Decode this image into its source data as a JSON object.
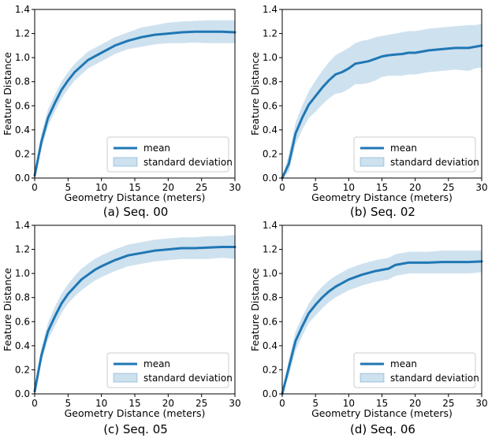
{
  "colors": {
    "mean": "#1f77b4",
    "band": "#1f77b4",
    "band_opacity": 0.22
  },
  "chart_data": [
    {
      "type": "line",
      "caption": "(a) Seq. 00",
      "xlabel": "Geometry Distance (meters)",
      "ylabel": "Feature Distance",
      "xlim": [
        0,
        30
      ],
      "ylim": [
        0,
        1.4
      ],
      "xticks": [
        0,
        5,
        10,
        15,
        20,
        25,
        30
      ],
      "yticks": [
        0.0,
        0.2,
        0.4,
        0.6,
        0.8,
        1.0,
        1.2,
        1.4
      ],
      "grid": false,
      "legend": {
        "placement": "lower-right",
        "entries": [
          "mean",
          "standard deviation"
        ]
      },
      "x": [
        0,
        1,
        2,
        3,
        4,
        5,
        6,
        7,
        8,
        9,
        10,
        12,
        14,
        16,
        18,
        20,
        22,
        24,
        26,
        28,
        30
      ],
      "mean": [
        0.02,
        0.3,
        0.5,
        0.62,
        0.73,
        0.81,
        0.88,
        0.93,
        0.98,
        1.01,
        1.04,
        1.1,
        1.14,
        1.17,
        1.19,
        1.2,
        1.21,
        1.215,
        1.215,
        1.215,
        1.21
      ],
      "upper": [
        0.05,
        0.37,
        0.57,
        0.69,
        0.8,
        0.88,
        0.95,
        1.0,
        1.05,
        1.08,
        1.11,
        1.17,
        1.21,
        1.25,
        1.27,
        1.29,
        1.3,
        1.305,
        1.31,
        1.31,
        1.31
      ],
      "lower": [
        0.0,
        0.24,
        0.43,
        0.55,
        0.66,
        0.74,
        0.81,
        0.86,
        0.91,
        0.94,
        0.97,
        1.03,
        1.07,
        1.09,
        1.11,
        1.12,
        1.12,
        1.125,
        1.12,
        1.12,
        1.12
      ]
    },
    {
      "type": "line",
      "caption": "(b) Seq. 02",
      "xlabel": "Geometry Distance (meters)",
      "ylabel": "Feature Distance",
      "xlim": [
        0,
        30
      ],
      "ylim": [
        0,
        1.4
      ],
      "xticks": [
        0,
        5,
        10,
        15,
        20,
        25,
        30
      ],
      "yticks": [
        0.0,
        0.2,
        0.4,
        0.6,
        0.8,
        1.0,
        1.2,
        1.4
      ],
      "grid": false,
      "legend": {
        "placement": "lower-right",
        "entries": [
          "mean",
          "standard deviation"
        ]
      },
      "x": [
        0,
        1,
        2,
        3,
        4,
        5,
        6,
        7,
        8,
        9,
        10,
        11,
        12,
        13,
        14,
        15,
        16,
        17,
        18,
        19,
        20,
        22,
        24,
        26,
        28,
        29,
        30
      ],
      "mean": [
        0.0,
        0.12,
        0.37,
        0.5,
        0.61,
        0.68,
        0.75,
        0.81,
        0.86,
        0.88,
        0.91,
        0.95,
        0.96,
        0.97,
        0.99,
        1.01,
        1.02,
        1.025,
        1.03,
        1.04,
        1.04,
        1.06,
        1.07,
        1.08,
        1.08,
        1.09,
        1.1
      ],
      "upper": [
        0.0,
        0.2,
        0.46,
        0.6,
        0.72,
        0.81,
        0.89,
        0.96,
        1.02,
        1.05,
        1.08,
        1.12,
        1.14,
        1.15,
        1.17,
        1.18,
        1.19,
        1.2,
        1.21,
        1.22,
        1.22,
        1.24,
        1.25,
        1.26,
        1.27,
        1.27,
        1.28
      ],
      "lower": [
        0.0,
        0.05,
        0.28,
        0.4,
        0.5,
        0.55,
        0.61,
        0.66,
        0.7,
        0.71,
        0.74,
        0.78,
        0.78,
        0.79,
        0.81,
        0.84,
        0.85,
        0.85,
        0.85,
        0.86,
        0.86,
        0.88,
        0.89,
        0.9,
        0.89,
        0.91,
        0.92
      ]
    },
    {
      "type": "line",
      "caption": "(c) Seq. 05",
      "xlabel": "Geometry Distance (meters)",
      "ylabel": "Feature Distance",
      "xlim": [
        0,
        30
      ],
      "ylim": [
        0,
        1.4
      ],
      "xticks": [
        0,
        5,
        10,
        15,
        20,
        25,
        30
      ],
      "yticks": [
        0.0,
        0.2,
        0.4,
        0.6,
        0.8,
        1.0,
        1.2,
        1.4
      ],
      "grid": false,
      "legend": {
        "placement": "lower-right",
        "entries": [
          "mean",
          "standard deviation"
        ]
      },
      "x": [
        0,
        1,
        2,
        3,
        4,
        5,
        6,
        7,
        8,
        9,
        10,
        12,
        14,
        16,
        18,
        20,
        22,
        24,
        26,
        28,
        30
      ],
      "mean": [
        0.02,
        0.32,
        0.52,
        0.64,
        0.75,
        0.83,
        0.89,
        0.95,
        0.99,
        1.03,
        1.06,
        1.11,
        1.15,
        1.17,
        1.19,
        1.2,
        1.21,
        1.21,
        1.215,
        1.22,
        1.22
      ],
      "upper": [
        0.05,
        0.38,
        0.59,
        0.72,
        0.83,
        0.91,
        0.98,
        1.04,
        1.08,
        1.12,
        1.15,
        1.2,
        1.24,
        1.26,
        1.28,
        1.29,
        1.3,
        1.3,
        1.31,
        1.31,
        1.32
      ],
      "lower": [
        0.0,
        0.26,
        0.45,
        0.56,
        0.67,
        0.75,
        0.81,
        0.86,
        0.9,
        0.94,
        0.97,
        1.02,
        1.06,
        1.08,
        1.1,
        1.11,
        1.12,
        1.12,
        1.12,
        1.13,
        1.12
      ]
    },
    {
      "type": "line",
      "caption": "(d) Seq. 06",
      "xlabel": "Geometry Distance (meters)",
      "ylabel": "Feature Distance",
      "xlim": [
        0,
        30
      ],
      "ylim": [
        0,
        1.4
      ],
      "xticks": [
        0,
        5,
        10,
        15,
        20,
        25,
        30
      ],
      "yticks": [
        0.0,
        0.2,
        0.4,
        0.6,
        0.8,
        1.0,
        1.2,
        1.4
      ],
      "grid": false,
      "legend": {
        "placement": "lower-right",
        "entries": [
          "mean",
          "standard deviation"
        ]
      },
      "x": [
        0,
        1,
        2,
        3,
        4,
        5,
        6,
        7,
        8,
        9,
        10,
        12,
        14,
        16,
        17,
        18,
        19,
        20,
        22,
        24,
        26,
        28,
        30
      ],
      "mean": [
        0.0,
        0.22,
        0.44,
        0.56,
        0.67,
        0.74,
        0.8,
        0.85,
        0.89,
        0.92,
        0.95,
        0.99,
        1.02,
        1.04,
        1.07,
        1.08,
        1.09,
        1.09,
        1.09,
        1.095,
        1.095,
        1.095,
        1.1
      ],
      "upper": [
        0.0,
        0.29,
        0.52,
        0.64,
        0.75,
        0.83,
        0.89,
        0.94,
        0.98,
        1.01,
        1.04,
        1.08,
        1.11,
        1.13,
        1.16,
        1.17,
        1.18,
        1.18,
        1.18,
        1.19,
        1.19,
        1.19,
        1.19
      ],
      "lower": [
        0.0,
        0.15,
        0.36,
        0.48,
        0.59,
        0.65,
        0.71,
        0.76,
        0.8,
        0.83,
        0.86,
        0.9,
        0.93,
        0.95,
        0.98,
        0.99,
        1.0,
        1.0,
        1.0,
        1.0,
        1.0,
        1.0,
        1.01
      ]
    }
  ]
}
